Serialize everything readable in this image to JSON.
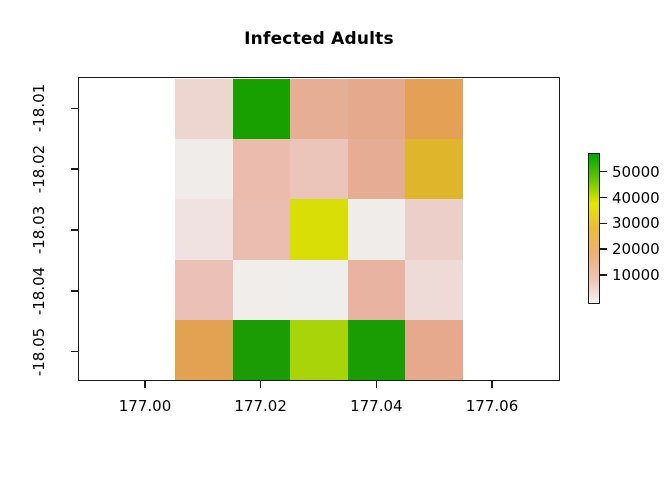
{
  "title": {
    "text": "Infected Adults"
  },
  "chart_data": {
    "type": "heatmap",
    "title": "Infected Adults",
    "xlabel": "",
    "ylabel": "",
    "x_centers": [
      177.01,
      177.02,
      177.03,
      177.04,
      177.05
    ],
    "y_centers": [
      -18.01,
      -18.02,
      -18.03,
      -18.04,
      -18.05
    ],
    "cell_size": {
      "dx": 0.01,
      "dy": 0.01
    },
    "x_axis": {
      "tick_values": [
        177.0,
        177.02,
        177.04,
        177.06
      ],
      "tick_labels": [
        "177.00",
        "177.02",
        "177.04",
        "177.06"
      ],
      "range": [
        176.988,
        177.072
      ]
    },
    "y_axis": {
      "tick_values": [
        -18.01,
        -18.02,
        -18.03,
        -18.04,
        -18.05
      ],
      "tick_labels": [
        "-18.01",
        "-18.02",
        "-18.03",
        "-18.04",
        "-18.05"
      ],
      "range": [
        -18.055,
        -18.005
      ]
    },
    "zlim_estimate": [
      0,
      57000
    ],
    "grid_on": false,
    "rows_top_to_bottom": [
      {
        "y": -18.01,
        "values_estimate": [
          4000,
          55000,
          11000,
          12000,
          17000
        ],
        "colors": [
          "#eed6d0",
          "#18a000",
          "#e6ae94",
          "#e5a98d",
          "#e4a156"
        ]
      },
      {
        "y": -18.02,
        "values_estimate": [
          1000,
          8000,
          7000,
          11500,
          22000
        ],
        "colors": [
          "#efecea",
          "#ebbcae",
          "#ebc4ba",
          "#e6ad94",
          "#dfb52c"
        ]
      },
      {
        "y": -18.03,
        "values_estimate": [
          3000,
          8000,
          30000,
          1000,
          5000
        ],
        "colors": [
          "#efe2e0",
          "#eabdb0",
          "#d9de07",
          "#efece9",
          "#edcfc9"
        ]
      },
      {
        "y": -18.04,
        "values_estimate": [
          7500,
          1000,
          1000,
          9500,
          3500
        ],
        "colors": [
          "#ebc0b6",
          "#f0edeb",
          "#efeeec",
          "#e9b3a2",
          "#eedbd8"
        ]
      },
      {
        "y": -18.05,
        "values_estimate": [
          17000,
          55000,
          38000,
          55000,
          12000
        ],
        "colors": [
          "#e2a252",
          "#1c9c04",
          "#a8d409",
          "#1a9d02",
          "#e6a98d"
        ]
      }
    ],
    "legend": {
      "position": "right",
      "tick_values": [
        50000,
        40000,
        30000,
        20000,
        10000
      ],
      "tick_labels": [
        "50000",
        "40000",
        "30000",
        "20000",
        "10000"
      ],
      "palette_name": "reversed terrain colors (white-pink-orange-yellow-green)",
      "gradient_bottom_to_top": [
        "#F2F2F2",
        "#EFC2B3",
        "#ECB176",
        "#E9BD3A",
        "#E6E600",
        "#63C600",
        "#00A600"
      ]
    }
  }
}
